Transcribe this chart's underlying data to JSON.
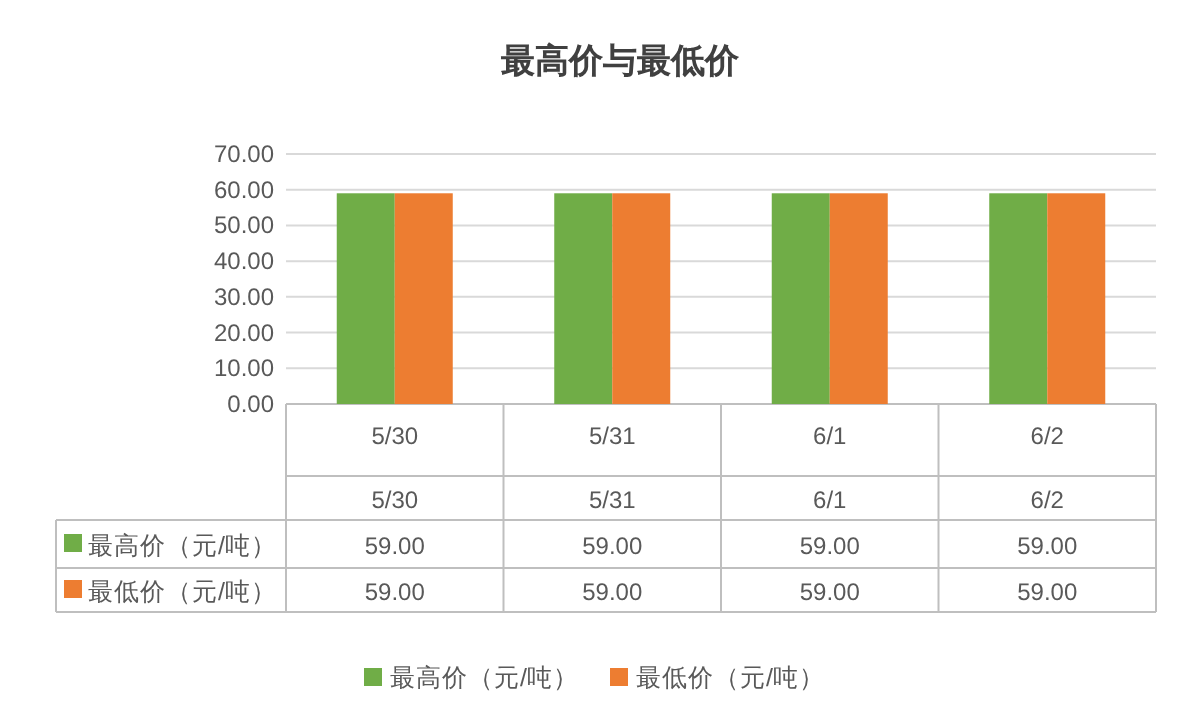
{
  "chart_data": {
    "type": "bar",
    "title": "最高价与最低价",
    "categories": [
      "5/30",
      "5/31",
      "6/1",
      "6/2"
    ],
    "series": [
      {
        "name": "最高价（元/吨）",
        "color": "#70ad47",
        "values": [
          59,
          59,
          59,
          59
        ],
        "value_labels": [
          "59.00",
          "59.00",
          "59.00",
          "59.00"
        ]
      },
      {
        "name": "最低价（元/吨）",
        "color": "#ed7d31",
        "values": [
          59,
          59,
          59,
          59
        ],
        "value_labels": [
          "59.00",
          "59.00",
          "59.00",
          "59.00"
        ]
      }
    ],
    "ylim": [
      0,
      70
    ],
    "yticks": [
      {
        "value": 0,
        "label": "0.00"
      },
      {
        "value": 10,
        "label": "10.00"
      },
      {
        "value": 20,
        "label": "20.00"
      },
      {
        "value": 30,
        "label": "30.00"
      },
      {
        "value": 40,
        "label": "40.00"
      },
      {
        "value": 50,
        "label": "50.00"
      },
      {
        "value": 60,
        "label": "60.00"
      },
      {
        "value": 70,
        "label": "70.00"
      }
    ],
    "grid": "y",
    "legend": "bottom"
  }
}
